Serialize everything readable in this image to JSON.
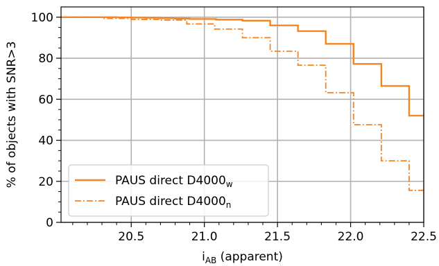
{
  "chart_data": {
    "type": "line",
    "ylabel": "% of objects with SNR>3",
    "xlabel_main": "i",
    "xlabel_sub": "AB",
    "xlabel_rest": " (apparent)",
    "xlim": [
      20.02,
      22.5
    ],
    "ylim": [
      0,
      105
    ],
    "x_ticks": [
      20.5,
      21.0,
      21.5,
      22.0,
      22.5
    ],
    "x_tick_labels": [
      "20.5",
      "21.0",
      "21.5",
      "22.0",
      "22.5"
    ],
    "y_ticks": [
      0,
      20,
      40,
      60,
      80,
      100
    ],
    "y_tick_labels": [
      "0",
      "20",
      "40",
      "60",
      "80",
      "100"
    ],
    "grid": true,
    "legend_position": "lower-left",
    "colors": {
      "series": "#f28526"
    },
    "series": [
      {
        "name_main": "PAUS direct D4000",
        "name_sub": "w",
        "style": "solid",
        "x": [
          20.02,
          20.1,
          20.2,
          20.3,
          20.4,
          20.5,
          20.6,
          20.7,
          20.8,
          20.9,
          21.08,
          21.26,
          21.45,
          21.64,
          21.83,
          22.02,
          22.21,
          22.4,
          22.5
        ],
        "y": [
          100,
          100,
          100,
          100,
          99.9,
          99.8,
          99.7,
          99.5,
          99.3,
          99.1,
          98.8,
          98.3,
          96.0,
          93.2,
          87.0,
          77.2,
          66.5,
          52.0,
          52.0
        ]
      },
      {
        "name_main": "PAUS direct D4000",
        "name_sub": "n",
        "style": "dashdot",
        "x": [
          20.02,
          20.1,
          20.3,
          20.5,
          20.7,
          20.88,
          21.07,
          21.26,
          21.45,
          21.64,
          21.83,
          22.02,
          22.21,
          22.4,
          22.5
        ],
        "y": [
          100,
          100,
          99.4,
          98.9,
          98.6,
          96.7,
          94.2,
          90.0,
          83.4,
          76.6,
          63.2,
          47.6,
          30.0,
          15.6,
          15.6
        ]
      }
    ]
  }
}
